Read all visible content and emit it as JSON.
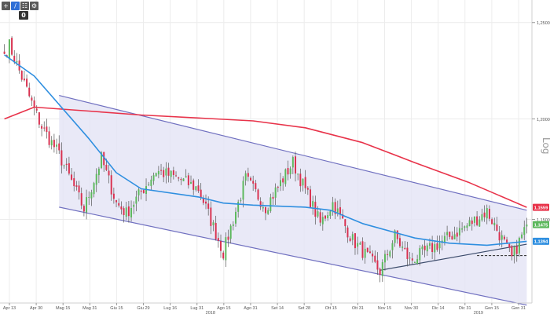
{
  "toolbar": {
    "buttons": [
      {
        "icon": "crosshair-icon",
        "glyph": "+"
      },
      {
        "icon": "draw-line-icon",
        "glyph": "/"
      },
      {
        "icon": "zoom-icon",
        "glyph": "☷"
      },
      {
        "icon": "settings-icon",
        "glyph": "⚙"
      }
    ],
    "zoom_badge": "0"
  },
  "scale_label": "Log",
  "chart_data": {
    "type": "candlestick",
    "scale": "log",
    "ylim": [
      1.11,
      1.262
    ],
    "y_ticks": [
      {
        "value": 1.25,
        "label": "1,2500"
      },
      {
        "value": 1.2,
        "label": "1,2000"
      },
      {
        "value": 1.15,
        "label": "1,1500"
      }
    ],
    "x_ticks": [
      "Apr 13",
      "Apr 30",
      "Mag 15",
      "Mag 31",
      "Giu 15",
      "Giu 29",
      "Lug 16",
      "Lug 31",
      "Ago 15",
      "Ago 31",
      "Set 14",
      "Set 28",
      "Ott 15",
      "Ott 31",
      "Nov 15",
      "Nov 30",
      "Dic 14",
      "Dic 31",
      "Gen 15",
      "Gen 31"
    ],
    "year_labels": [
      {
        "after_tick": 8,
        "label": "2018"
      },
      {
        "after_tick": 18,
        "label": "2019"
      }
    ],
    "grid": true,
    "price_badges": [
      {
        "value": 1.1559,
        "label": "1,1559",
        "color": "#e8334a"
      },
      {
        "value": 1.1475,
        "label": "1,1475",
        "color": "#5cb85c"
      },
      {
        "value": 1.1394,
        "label": "1,1394",
        "color": "#2f8fe0"
      }
    ],
    "anchors": [
      {
        "date": "2018-04-13",
        "close": 1.2335
      },
      {
        "date": "2018-04-17",
        "close": 1.238
      },
      {
        "date": "2018-04-30",
        "close": 1.208
      },
      {
        "date": "2018-05-04",
        "close": 1.196
      },
      {
        "date": "2018-05-15",
        "close": 1.182
      },
      {
        "date": "2018-05-29",
        "close": 1.155
      },
      {
        "date": "2018-06-07",
        "close": 1.18
      },
      {
        "date": "2018-06-15",
        "close": 1.158
      },
      {
        "date": "2018-06-21",
        "close": 1.153
      },
      {
        "date": "2018-07-09",
        "close": 1.174
      },
      {
        "date": "2018-07-20",
        "close": 1.17
      },
      {
        "date": "2018-08-01",
        "close": 1.165
      },
      {
        "date": "2018-08-15",
        "close": 1.134
      },
      {
        "date": "2018-08-28",
        "close": 1.17
      },
      {
        "date": "2018-09-07",
        "close": 1.156
      },
      {
        "date": "2018-09-24",
        "close": 1.178
      },
      {
        "date": "2018-10-09",
        "close": 1.148
      },
      {
        "date": "2018-10-16",
        "close": 1.158
      },
      {
        "date": "2018-10-26",
        "close": 1.14
      },
      {
        "date": "2018-11-12",
        "close": 1.125
      },
      {
        "date": "2018-11-20",
        "close": 1.142
      },
      {
        "date": "2018-11-28",
        "close": 1.13
      },
      {
        "date": "2018-12-12",
        "close": 1.137
      },
      {
        "date": "2018-12-31",
        "close": 1.147
      },
      {
        "date": "2019-01-10",
        "close": 1.154
      },
      {
        "date": "2019-01-22",
        "close": 1.136
      },
      {
        "date": "2019-01-24",
        "close": 1.131
      },
      {
        "date": "2019-02-01",
        "close": 1.1475
      }
    ],
    "indicators": [
      {
        "kind": "moving-average",
        "color": "#e8334a",
        "points": [
          {
            "date": "2018-04-13",
            "value": 1.2
          },
          {
            "date": "2018-05-01",
            "value": 1.206
          },
          {
            "date": "2018-05-31",
            "value": 1.204
          },
          {
            "date": "2018-07-01",
            "value": 1.202
          },
          {
            "date": "2018-08-01",
            "value": 1.2005
          },
          {
            "date": "2018-09-01",
            "value": 1.199
          },
          {
            "date": "2018-10-01",
            "value": 1.1955
          },
          {
            "date": "2018-11-01",
            "value": 1.188
          },
          {
            "date": "2018-12-01",
            "value": 1.178
          },
          {
            "date": "2019-01-01",
            "value": 1.168
          },
          {
            "date": "2019-02-01",
            "value": 1.1559
          }
        ]
      },
      {
        "kind": "moving-average",
        "color": "#2f8fe0",
        "points": [
          {
            "date": "2018-04-13",
            "value": 1.233
          },
          {
            "date": "2018-05-01",
            "value": 1.222
          },
          {
            "date": "2018-05-31",
            "value": 1.19
          },
          {
            "date": "2018-06-15",
            "value": 1.173
          },
          {
            "date": "2018-07-01",
            "value": 1.165
          },
          {
            "date": "2018-08-01",
            "value": 1.161
          },
          {
            "date": "2018-08-15",
            "value": 1.158
          },
          {
            "date": "2018-09-01",
            "value": 1.157
          },
          {
            "date": "2018-10-01",
            "value": 1.156
          },
          {
            "date": "2018-10-15",
            "value": 1.1545
          },
          {
            "date": "2018-11-01",
            "value": 1.148
          },
          {
            "date": "2018-12-01",
            "value": 1.141
          },
          {
            "date": "2018-12-20",
            "value": 1.1385
          },
          {
            "date": "2019-01-10",
            "value": 1.1375
          },
          {
            "date": "2019-02-01",
            "value": 1.1394
          }
        ]
      }
    ],
    "channel": {
      "upper": [
        {
          "date": "2018-05-15",
          "value": 1.212
        },
        {
          "date": "2019-02-01",
          "value": 1.1545
        }
      ],
      "lower": [
        {
          "date": "2018-05-15",
          "value": 1.156
        },
        {
          "date": "2019-02-01",
          "value": 1.109
        }
      ],
      "fill": "#e5e5f6",
      "color": "#7070c0"
    },
    "support_line": [
      {
        "date": "2018-11-12",
        "value": 1.1255
      },
      {
        "date": "2019-02-01",
        "value": 1.138
      }
    ],
    "dashed_level": {
      "value": 1.1325,
      "from": "2019-01-06",
      "to": "2019-02-01"
    }
  }
}
